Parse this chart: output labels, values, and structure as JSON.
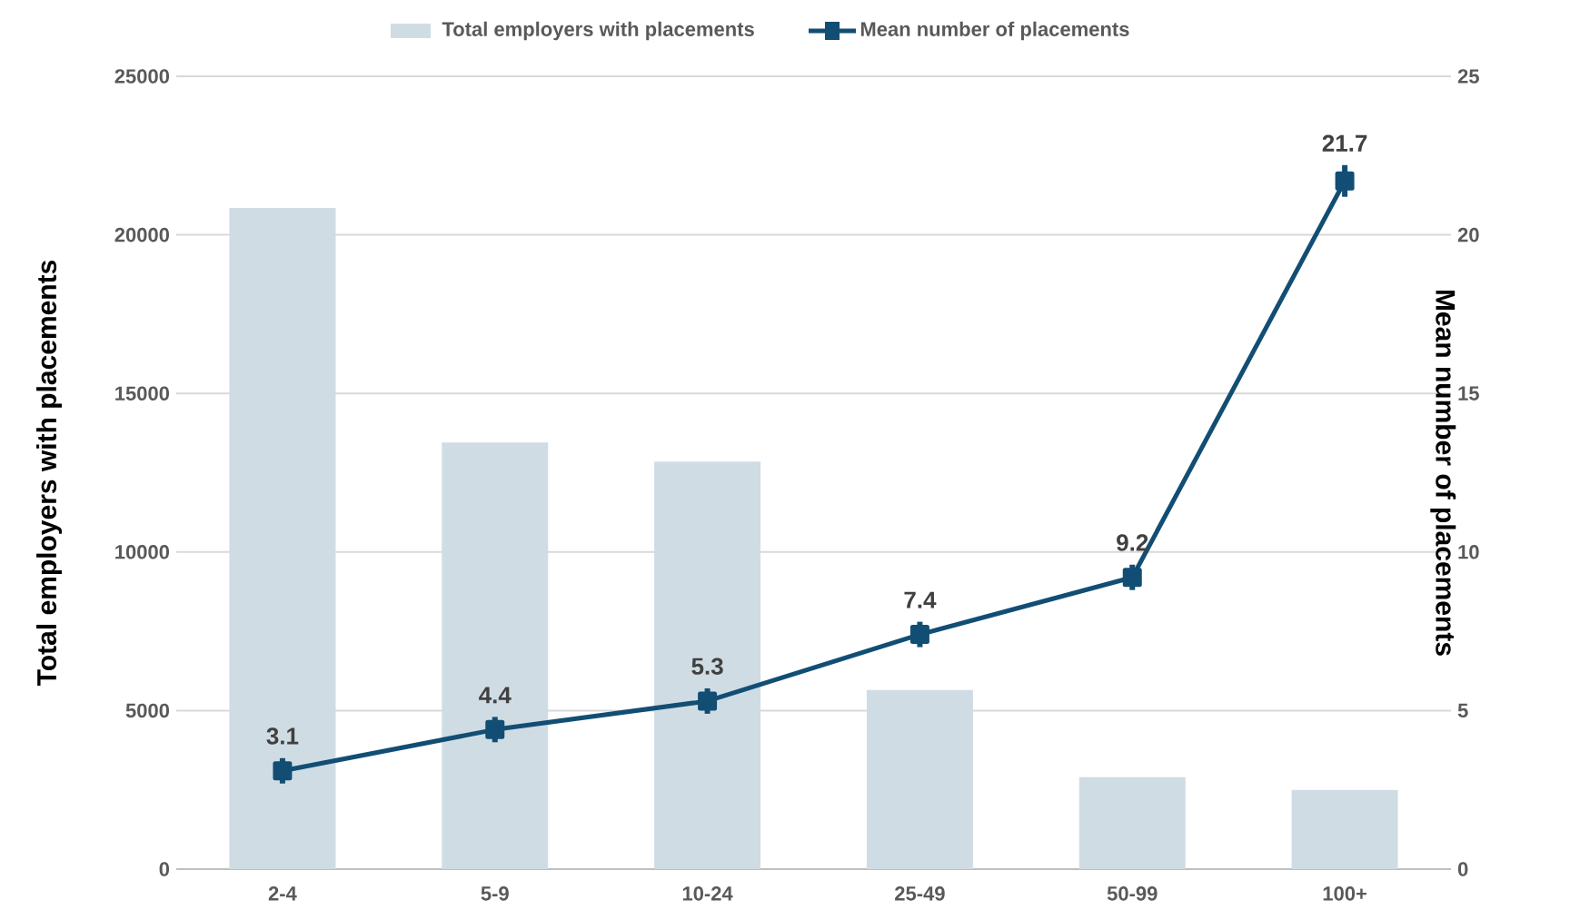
{
  "chart_data": {
    "type": "bar",
    "ylabel": "Total employers with placements",
    "y2label": "Mean number of placements",
    "categories": [
      "2-4",
      "5-9",
      "10-24",
      "25-49",
      "50-99",
      "100+"
    ],
    "series": [
      {
        "name": "Total employers with placements",
        "color": "#d0dce4",
        "values": [
          20850,
          13450,
          12850,
          5650,
          2900,
          2500
        ]
      },
      {
        "name": "Mean number of placements",
        "type": "line",
        "axis": "y2",
        "color": "#124e74",
        "marker": "square",
        "values": [
          3.1,
          4.4,
          5.3,
          7.4,
          9.2,
          21.7
        ],
        "errors": [
          0.4,
          0.4,
          0.4,
          0.4,
          0.4,
          0.5
        ],
        "data_labels": true
      }
    ],
    "ylim": [
      0,
      25000
    ],
    "yticks": [
      0,
      5000,
      10000,
      15000,
      20000,
      25000
    ],
    "y2lim": [
      0,
      25
    ],
    "y2ticks": [
      0,
      5,
      10,
      15,
      20,
      25
    ],
    "grid": "y",
    "legend": "top"
  }
}
